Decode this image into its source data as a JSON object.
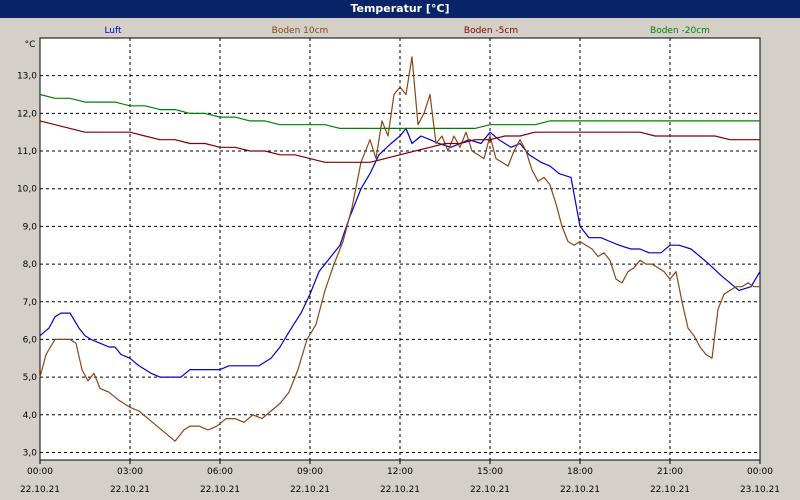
{
  "window": {
    "title": "Temperatur [°C]"
  },
  "colors": {
    "background": "#d4d0c8",
    "plot_background": "#ffffff",
    "grid": "#000000",
    "titlebar": "#0a246a"
  },
  "chart_data": {
    "type": "line",
    "title": "Temperatur [°C]",
    "ylabel": "°C",
    "xlabel": "",
    "ylim": [
      2.8,
      14.0
    ],
    "xlim": [
      0,
      24
    ],
    "grid": true,
    "legend_position": "top",
    "y_ticks": [
      "3,0",
      "4,0",
      "5,0",
      "6,0",
      "7,0",
      "8,0",
      "9,0",
      "10,0",
      "11,0",
      "12,0",
      "13,0"
    ],
    "y_tick_values": [
      3,
      4,
      5,
      6,
      7,
      8,
      9,
      10,
      11,
      12,
      13
    ],
    "x_ticks": [
      {
        "x": 0,
        "time": "00:00",
        "date": "22.10.21"
      },
      {
        "x": 3,
        "time": "03:00",
        "date": "22.10.21"
      },
      {
        "x": 6,
        "time": "06:00",
        "date": "22.10.21"
      },
      {
        "x": 9,
        "time": "09:00",
        "date": "22.10.21"
      },
      {
        "x": 12,
        "time": "12:00",
        "date": "22.10.21"
      },
      {
        "x": 15,
        "time": "15:00",
        "date": "22.10.21"
      },
      {
        "x": 18,
        "time": "18:00",
        "date": "22.10.21"
      },
      {
        "x": 21,
        "time": "21:00",
        "date": "22.10.21"
      },
      {
        "x": 24,
        "time": "00:00",
        "date": "23.10.21"
      }
    ],
    "series": [
      {
        "name": "Luft",
        "color": "#0000cc",
        "x": [
          0,
          0.3,
          0.5,
          0.7,
          1.0,
          1.3,
          1.5,
          1.7,
          2.0,
          2.3,
          2.5,
          2.7,
          3.0,
          3.3,
          3.7,
          4.0,
          4.3,
          4.7,
          5.0,
          5.3,
          5.7,
          6.0,
          6.3,
          6.7,
          7.0,
          7.3,
          7.7,
          8.0,
          8.3,
          8.7,
          9.0,
          9.3,
          9.7,
          10.0,
          10.3,
          10.7,
          11.0,
          11.3,
          11.7,
          12.0,
          12.2,
          12.4,
          12.7,
          13.0,
          13.3,
          13.7,
          14.0,
          14.3,
          14.7,
          15.0,
          15.3,
          15.7,
          16.0,
          16.3,
          16.7,
          17.0,
          17.3,
          17.7,
          18.0,
          18.3,
          18.7,
          19.0,
          19.3,
          19.7,
          20.0,
          20.3,
          20.7,
          21.0,
          21.3,
          21.7,
          22.0,
          22.3,
          22.7,
          23.0,
          23.3,
          23.7,
          24.0
        ],
        "y": [
          6.1,
          6.3,
          6.6,
          6.7,
          6.7,
          6.3,
          6.1,
          6.0,
          5.9,
          5.8,
          5.8,
          5.6,
          5.5,
          5.3,
          5.1,
          5.0,
          5.0,
          5.0,
          5.2,
          5.2,
          5.2,
          5.2,
          5.3,
          5.3,
          5.3,
          5.3,
          5.5,
          5.8,
          6.2,
          6.7,
          7.2,
          7.8,
          8.2,
          8.5,
          9.2,
          10.0,
          10.4,
          10.9,
          11.2,
          11.4,
          11.6,
          11.2,
          11.4,
          11.3,
          11.2,
          11.1,
          11.2,
          11.3,
          11.2,
          11.5,
          11.3,
          11.1,
          11.2,
          10.9,
          10.7,
          10.6,
          10.4,
          10.3,
          9.0,
          8.7,
          8.7,
          8.6,
          8.5,
          8.4,
          8.4,
          8.3,
          8.3,
          8.5,
          8.5,
          8.4,
          8.2,
          8.0,
          7.7,
          7.5,
          7.3,
          7.4,
          7.8
        ]
      },
      {
        "name": "Boden 10cm",
        "color": "#8b4513",
        "x": [
          0,
          0.2,
          0.5,
          0.8,
          1.0,
          1.2,
          1.4,
          1.6,
          1.8,
          2.0,
          2.3,
          2.6,
          3.0,
          3.3,
          3.6,
          3.9,
          4.2,
          4.5,
          4.8,
          5.0,
          5.3,
          5.6,
          5.9,
          6.2,
          6.5,
          6.8,
          7.1,
          7.4,
          7.7,
          8.0,
          8.3,
          8.6,
          8.9,
          9.2,
          9.5,
          9.8,
          10.1,
          10.4,
          10.7,
          11.0,
          11.2,
          11.4,
          11.6,
          11.8,
          12.0,
          12.2,
          12.4,
          12.6,
          12.8,
          13.0,
          13.2,
          13.4,
          13.6,
          13.8,
          14.0,
          14.2,
          14.4,
          14.6,
          14.8,
          15.0,
          15.2,
          15.4,
          15.6,
          15.8,
          16.0,
          16.2,
          16.4,
          16.6,
          16.8,
          17.0,
          17.2,
          17.4,
          17.6,
          17.8,
          18.0,
          18.2,
          18.4,
          18.6,
          18.8,
          19.0,
          19.2,
          19.4,
          19.6,
          19.8,
          20.0,
          20.2,
          20.4,
          20.6,
          20.8,
          21.0,
          21.2,
          21.4,
          21.6,
          21.8,
          22.0,
          22.2,
          22.4,
          22.6,
          22.8,
          23.0,
          23.2,
          23.4,
          23.6,
          23.8,
          24.0
        ],
        "y": [
          5.0,
          5.6,
          6.0,
          6.0,
          6.0,
          5.9,
          5.2,
          4.9,
          5.1,
          4.7,
          4.6,
          4.4,
          4.2,
          4.1,
          3.9,
          3.7,
          3.5,
          3.3,
          3.6,
          3.7,
          3.7,
          3.6,
          3.7,
          3.9,
          3.9,
          3.8,
          4.0,
          3.9,
          4.1,
          4.3,
          4.6,
          5.2,
          6.0,
          6.4,
          7.3,
          8.0,
          8.6,
          9.5,
          10.7,
          11.3,
          10.8,
          11.8,
          11.4,
          12.5,
          12.7,
          12.5,
          13.5,
          11.7,
          12.0,
          12.5,
          11.2,
          11.4,
          11.0,
          11.4,
          11.1,
          11.5,
          11.0,
          10.9,
          10.8,
          11.4,
          10.8,
          10.7,
          10.6,
          11.0,
          11.3,
          11.0,
          10.5,
          10.2,
          10.3,
          10.1,
          9.6,
          9.0,
          8.6,
          8.5,
          8.6,
          8.5,
          8.4,
          8.2,
          8.3,
          8.1,
          7.6,
          7.5,
          7.8,
          7.9,
          8.1,
          8.0,
          8.0,
          7.9,
          7.8,
          7.6,
          7.8,
          7.0,
          6.3,
          6.1,
          5.8,
          5.6,
          5.5,
          6.8,
          7.2,
          7.3,
          7.4,
          7.4,
          7.5,
          7.4,
          7.4
        ]
      },
      {
        "name": "Boden -5cm",
        "color": "#800000",
        "x": [
          0,
          0.5,
          1.0,
          1.5,
          2.0,
          2.5,
          3.0,
          3.5,
          4.0,
          4.5,
          5.0,
          5.5,
          6.0,
          6.5,
          7.0,
          7.5,
          8.0,
          8.5,
          9.0,
          9.5,
          10.0,
          10.5,
          11.0,
          11.5,
          12.0,
          12.5,
          13.0,
          13.5,
          14.0,
          14.5,
          15.0,
          15.5,
          16.0,
          16.5,
          17.0,
          17.5,
          18.0,
          18.5,
          19.0,
          19.5,
          20.0,
          20.5,
          21.0,
          21.5,
          22.0,
          22.5,
          23.0,
          23.5,
          24.0
        ],
        "y": [
          11.8,
          11.7,
          11.6,
          11.5,
          11.5,
          11.5,
          11.5,
          11.4,
          11.3,
          11.3,
          11.2,
          11.2,
          11.1,
          11.1,
          11.0,
          11.0,
          10.9,
          10.9,
          10.8,
          10.7,
          10.7,
          10.7,
          10.7,
          10.8,
          10.9,
          11.0,
          11.1,
          11.2,
          11.2,
          11.3,
          11.3,
          11.4,
          11.4,
          11.5,
          11.5,
          11.5,
          11.5,
          11.5,
          11.5,
          11.5,
          11.5,
          11.4,
          11.4,
          11.4,
          11.4,
          11.4,
          11.3,
          11.3,
          11.3
        ]
      },
      {
        "name": "Boden -20cm",
        "color": "#008000",
        "x": [
          0,
          0.5,
          1.0,
          1.5,
          2.0,
          2.5,
          3.0,
          3.5,
          4.0,
          4.5,
          5.0,
          5.5,
          6.0,
          6.5,
          7.0,
          7.5,
          8.0,
          8.5,
          9.0,
          9.5,
          10.0,
          10.5,
          11.0,
          11.5,
          12.0,
          12.5,
          13.0,
          13.5,
          14.0,
          14.5,
          15.0,
          15.5,
          16.0,
          16.5,
          17.0,
          17.5,
          18.0,
          18.5,
          19.0,
          19.5,
          20.0,
          20.5,
          21.0,
          21.5,
          22.0,
          22.5,
          23.0,
          23.5,
          24.0
        ],
        "y": [
          12.5,
          12.4,
          12.4,
          12.3,
          12.3,
          12.3,
          12.2,
          12.2,
          12.1,
          12.1,
          12.0,
          12.0,
          11.9,
          11.9,
          11.8,
          11.8,
          11.7,
          11.7,
          11.7,
          11.7,
          11.6,
          11.6,
          11.6,
          11.6,
          11.6,
          11.6,
          11.6,
          11.6,
          11.6,
          11.6,
          11.7,
          11.7,
          11.7,
          11.7,
          11.8,
          11.8,
          11.8,
          11.8,
          11.8,
          11.8,
          11.8,
          11.8,
          11.8,
          11.8,
          11.8,
          11.8,
          11.8,
          11.8,
          11.8
        ]
      }
    ]
  }
}
